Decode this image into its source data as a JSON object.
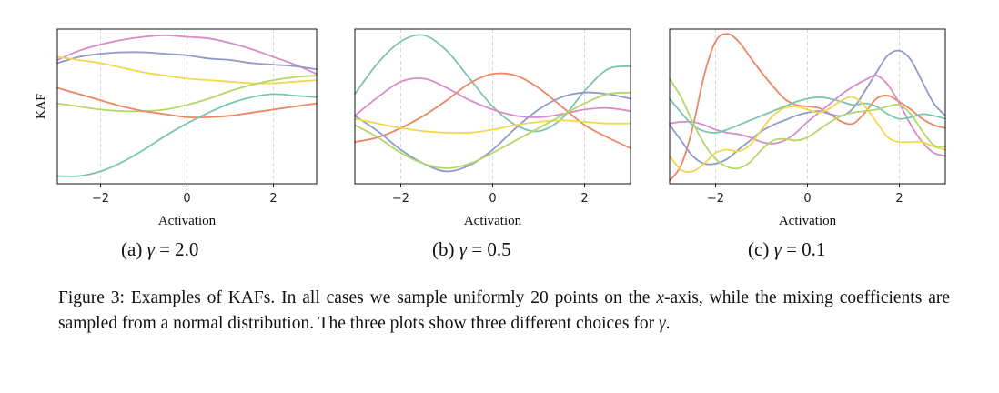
{
  "chart_data": [
    {
      "type": "line",
      "ylabel": "KAF",
      "xlabel": "Activation",
      "xlim": [
        -3,
        3
      ],
      "xticks": [
        -2,
        0,
        2
      ],
      "x_tick_labels": [
        "−2",
        "0",
        "2"
      ],
      "ylim": [
        0,
        1
      ],
      "grid": "vertical dashed",
      "caption_prefix": "(a)",
      "gamma_text": "= 2.0",
      "series": [
        {
          "color": "#d98bc8",
          "x": [
            -3,
            -2.5,
            -2,
            -1.5,
            -1,
            -0.5,
            0,
            0.5,
            1,
            1.5,
            2,
            2.5,
            3
          ],
          "y": [
            0.8,
            0.86,
            0.9,
            0.93,
            0.95,
            0.96,
            0.95,
            0.94,
            0.91,
            0.87,
            0.82,
            0.77,
            0.71
          ]
        },
        {
          "color": "#8f9bc9",
          "x": [
            -3,
            -2.5,
            -2,
            -1.5,
            -1,
            -0.5,
            0,
            0.5,
            1,
            1.5,
            2,
            2.5,
            3
          ],
          "y": [
            0.78,
            0.82,
            0.84,
            0.85,
            0.85,
            0.84,
            0.83,
            0.81,
            0.8,
            0.78,
            0.77,
            0.76,
            0.74
          ]
        },
        {
          "color": "#f2d84e",
          "x": [
            -3,
            -2.5,
            -2,
            -1.5,
            -1,
            -0.5,
            0,
            0.5,
            1,
            1.5,
            2,
            2.5,
            3
          ],
          "y": [
            0.82,
            0.8,
            0.78,
            0.75,
            0.72,
            0.7,
            0.68,
            0.67,
            0.66,
            0.65,
            0.65,
            0.66,
            0.67
          ]
        },
        {
          "color": "#b5d66b",
          "x": [
            -3,
            -2.5,
            -2,
            -1.5,
            -1,
            -0.5,
            0,
            0.5,
            1,
            1.5,
            2,
            2.5,
            3
          ],
          "y": [
            0.52,
            0.5,
            0.48,
            0.47,
            0.47,
            0.48,
            0.51,
            0.55,
            0.6,
            0.64,
            0.67,
            0.69,
            0.7
          ]
        },
        {
          "color": "#ec8766",
          "x": [
            -3,
            -2.5,
            -2,
            -1.5,
            -1,
            -0.5,
            0,
            0.5,
            1,
            1.5,
            2,
            2.5,
            3
          ],
          "y": [
            0.62,
            0.58,
            0.54,
            0.5,
            0.47,
            0.45,
            0.43,
            0.43,
            0.44,
            0.46,
            0.48,
            0.5,
            0.52
          ]
        },
        {
          "color": "#7cc6ae",
          "x": [
            -3,
            -2.5,
            -2,
            -1.5,
            -1,
            -0.5,
            0,
            0.5,
            1,
            1.5,
            2,
            2.5,
            3
          ],
          "y": [
            0.05,
            0.05,
            0.08,
            0.14,
            0.22,
            0.31,
            0.39,
            0.46,
            0.52,
            0.56,
            0.58,
            0.57,
            0.56
          ]
        }
      ]
    },
    {
      "type": "line",
      "ylabel": "",
      "xlabel": "Activation",
      "xlim": [
        -3,
        3
      ],
      "xticks": [
        -2,
        0,
        2
      ],
      "x_tick_labels": [
        "−2",
        "0",
        "2"
      ],
      "ylim": [
        0,
        1
      ],
      "grid": "vertical dashed",
      "caption_prefix": "(b)",
      "gamma_text": "= 0.5",
      "series": [
        {
          "color": "#7cc6ae",
          "x": [
            -3,
            -2.5,
            -2,
            -1.5,
            -1,
            -0.5,
            0,
            0.5,
            1,
            1.5,
            2,
            2.5,
            3
          ],
          "y": [
            0.58,
            0.78,
            0.92,
            0.96,
            0.86,
            0.68,
            0.5,
            0.38,
            0.34,
            0.42,
            0.6,
            0.74,
            0.76
          ]
        },
        {
          "color": "#d98bc8",
          "x": [
            -3,
            -2.5,
            -2,
            -1.5,
            -1,
            -0.5,
            0,
            0.5,
            1,
            1.5,
            2,
            2.5,
            3
          ],
          "y": [
            0.44,
            0.56,
            0.66,
            0.68,
            0.62,
            0.54,
            0.48,
            0.44,
            0.43,
            0.45,
            0.48,
            0.49,
            0.47
          ]
        },
        {
          "color": "#ec8766",
          "x": [
            -3,
            -2.5,
            -2,
            -1.5,
            -1,
            -0.5,
            0,
            0.5,
            1,
            1.5,
            2,
            2.5,
            3
          ],
          "y": [
            0.27,
            0.3,
            0.36,
            0.44,
            0.54,
            0.65,
            0.71,
            0.7,
            0.62,
            0.5,
            0.38,
            0.3,
            0.23
          ]
        },
        {
          "color": "#8f9bc9",
          "x": [
            -3,
            -2.5,
            -2,
            -1.5,
            -1,
            -0.5,
            0,
            0.5,
            1,
            1.5,
            2,
            2.5,
            3
          ],
          "y": [
            0.44,
            0.34,
            0.22,
            0.13,
            0.08,
            0.12,
            0.22,
            0.36,
            0.48,
            0.56,
            0.59,
            0.58,
            0.55
          ]
        },
        {
          "color": "#f2d84e",
          "x": [
            -3,
            -2.5,
            -2,
            -1.5,
            -1,
            -0.5,
            0,
            0.5,
            1,
            1.5,
            2,
            2.5,
            3
          ],
          "y": [
            0.42,
            0.39,
            0.36,
            0.34,
            0.33,
            0.33,
            0.35,
            0.38,
            0.4,
            0.41,
            0.4,
            0.39,
            0.39
          ]
        },
        {
          "color": "#b5d66b",
          "x": [
            -3,
            -2.5,
            -2,
            -1.5,
            -1,
            -0.5,
            0,
            0.5,
            1,
            1.5,
            2,
            2.5,
            3
          ],
          "y": [
            0.38,
            0.3,
            0.2,
            0.13,
            0.1,
            0.13,
            0.2,
            0.28,
            0.36,
            0.44,
            0.52,
            0.58,
            0.59
          ]
        }
      ]
    },
    {
      "type": "line",
      "ylabel": "",
      "xlabel": "Activation",
      "xlim": [
        -3,
        3
      ],
      "xticks": [
        -2,
        0,
        2
      ],
      "x_tick_labels": [
        "−2",
        "0",
        "2"
      ],
      "ylim": [
        0,
        1
      ],
      "grid": "vertical dashed",
      "caption_prefix": "(c)",
      "gamma_text": "= 0.1",
      "series": [
        {
          "color": "#ec8766",
          "x": [
            -3,
            -2.75,
            -2.5,
            -2.25,
            -2,
            -1.75,
            -1.5,
            -1.25,
            -1,
            -0.75,
            -0.5,
            -0.25,
            0,
            0.25,
            0.5,
            0.75,
            1,
            1.25,
            1.5,
            1.75,
            2,
            2.25,
            2.5,
            2.75,
            3
          ],
          "y": [
            0.02,
            0.12,
            0.36,
            0.7,
            0.92,
            0.97,
            0.92,
            0.82,
            0.72,
            0.63,
            0.55,
            0.51,
            0.5,
            0.49,
            0.45,
            0.4,
            0.39,
            0.46,
            0.55,
            0.57,
            0.53,
            0.48,
            0.42,
            0.38,
            0.36
          ]
        },
        {
          "color": "#8f9bc9",
          "x": [
            -3,
            -2.75,
            -2.5,
            -2.25,
            -2,
            -1.75,
            -1.5,
            -1.25,
            -1,
            -0.75,
            -0.5,
            -0.25,
            0,
            0.25,
            0.5,
            0.75,
            1,
            1.25,
            1.5,
            1.75,
            2,
            2.25,
            2.5,
            2.75,
            3
          ],
          "y": [
            0.38,
            0.28,
            0.18,
            0.13,
            0.13,
            0.16,
            0.22,
            0.28,
            0.34,
            0.38,
            0.41,
            0.44,
            0.46,
            0.47,
            0.45,
            0.44,
            0.49,
            0.6,
            0.72,
            0.83,
            0.86,
            0.8,
            0.66,
            0.52,
            0.44
          ]
        },
        {
          "color": "#d98bc8",
          "x": [
            -3,
            -2.75,
            -2.5,
            -2.25,
            -2,
            -1.75,
            -1.5,
            -1.25,
            -1,
            -0.75,
            -0.5,
            -0.25,
            0,
            0.25,
            0.5,
            0.75,
            1,
            1.25,
            1.5,
            1.75,
            2,
            2.25,
            2.5,
            2.75,
            3
          ],
          "y": [
            0.39,
            0.4,
            0.4,
            0.38,
            0.35,
            0.33,
            0.32,
            0.3,
            0.27,
            0.26,
            0.28,
            0.33,
            0.4,
            0.46,
            0.52,
            0.58,
            0.63,
            0.67,
            0.7,
            0.64,
            0.52,
            0.38,
            0.27,
            0.2,
            0.18
          ]
        },
        {
          "color": "#7cc6ae",
          "x": [
            -3,
            -2.75,
            -2.5,
            -2.25,
            -2,
            -1.75,
            -1.5,
            -1.25,
            -1,
            -0.75,
            -0.5,
            -0.25,
            0,
            0.25,
            0.5,
            0.75,
            1,
            1.25,
            1.5,
            1.75,
            2,
            2.25,
            2.5,
            2.75,
            3
          ],
          "y": [
            0.55,
            0.46,
            0.38,
            0.34,
            0.33,
            0.35,
            0.38,
            0.41,
            0.44,
            0.47,
            0.5,
            0.53,
            0.55,
            0.56,
            0.55,
            0.53,
            0.51,
            0.52,
            0.5,
            0.45,
            0.42,
            0.43,
            0.45,
            0.44,
            0.42
          ]
        },
        {
          "color": "#f2d84e",
          "x": [
            -3,
            -2.75,
            -2.5,
            -2.25,
            -2,
            -1.75,
            -1.5,
            -1.25,
            -1,
            -0.75,
            -0.5,
            -0.25,
            0,
            0.25,
            0.5,
            0.75,
            1,
            1.25,
            1.5,
            1.75,
            2,
            2.25,
            2.5,
            2.75,
            3
          ],
          "y": [
            0.18,
            0.09,
            0.08,
            0.13,
            0.2,
            0.22,
            0.21,
            0.25,
            0.35,
            0.44,
            0.49,
            0.5,
            0.48,
            0.46,
            0.49,
            0.54,
            0.56,
            0.5,
            0.4,
            0.3,
            0.27,
            0.27,
            0.27,
            0.24,
            0.22
          ]
        },
        {
          "color": "#b5d66b",
          "x": [
            -3,
            -2.75,
            -2.5,
            -2.25,
            -2,
            -1.75,
            -1.5,
            -1.25,
            -1,
            -0.75,
            -0.5,
            -0.25,
            0,
            0.25,
            0.5,
            0.75,
            1,
            1.25,
            1.5,
            1.75,
            2,
            2.25,
            2.5,
            2.75,
            3
          ],
          "y": [
            0.68,
            0.56,
            0.4,
            0.26,
            0.16,
            0.11,
            0.1,
            0.14,
            0.22,
            0.28,
            0.29,
            0.28,
            0.3,
            0.35,
            0.4,
            0.44,
            0.46,
            0.47,
            0.48,
            0.5,
            0.51,
            0.45,
            0.34,
            0.25,
            0.24
          ]
        }
      ]
    }
  ],
  "subcaptions": {
    "gamma_symbol": "γ"
  },
  "caption": {
    "text_before_x": "Figure 3: Examples of KAFs. In all cases we sample uniformly 20 points on the ",
    "x_symbol": "x",
    "text_after_x": "-axis, while the mixing coefficients are sampled from a normal distribution. The three plots show three different choices for ",
    "gamma_symbol": "γ",
    "text_end": "."
  }
}
